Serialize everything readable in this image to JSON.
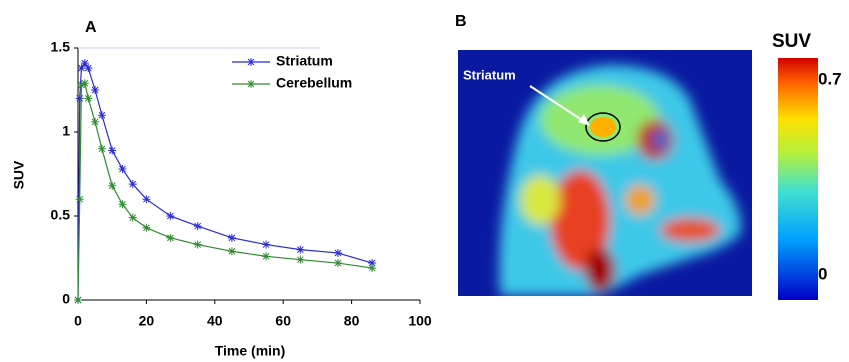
{
  "chart_data": [
    {
      "type": "line",
      "panel_label": "A",
      "x": [
        0,
        0.5,
        1,
        2,
        3,
        5,
        7,
        10,
        13,
        16,
        20,
        27,
        35,
        45,
        55,
        65,
        76,
        86
      ],
      "series": [
        {
          "name": "Striatum",
          "color": "#2b2bd6",
          "values": [
            0,
            1.2,
            1.38,
            1.41,
            1.38,
            1.25,
            1.1,
            0.89,
            0.78,
            0.69,
            0.6,
            0.5,
            0.44,
            0.37,
            0.33,
            0.3,
            0.28,
            0.22
          ]
        },
        {
          "name": "Cerebellum",
          "color": "#2e8b2e",
          "values": [
            0,
            0.6,
            1.28,
            1.29,
            1.2,
            1.06,
            0.9,
            0.68,
            0.57,
            0.49,
            0.43,
            0.37,
            0.33,
            0.29,
            0.26,
            0.24,
            0.22,
            0.19
          ]
        }
      ],
      "xlabel": "Time (min)",
      "ylabel": "SUV",
      "xlim": [
        0,
        100
      ],
      "xticks": [
        0,
        20,
        40,
        60,
        80,
        100
      ],
      "ylim": [
        0,
        1.5
      ],
      "yticks": [
        0,
        0.5,
        1,
        1.5
      ],
      "legend": "upper right"
    },
    {
      "type": "image",
      "panel_label": "B",
      "annotation": "Striatum",
      "colorbar_label": "SUV",
      "ylim": [
        -0.09,
        0.78
      ],
      "yticks": [
        0,
        0.7
      ]
    }
  ]
}
